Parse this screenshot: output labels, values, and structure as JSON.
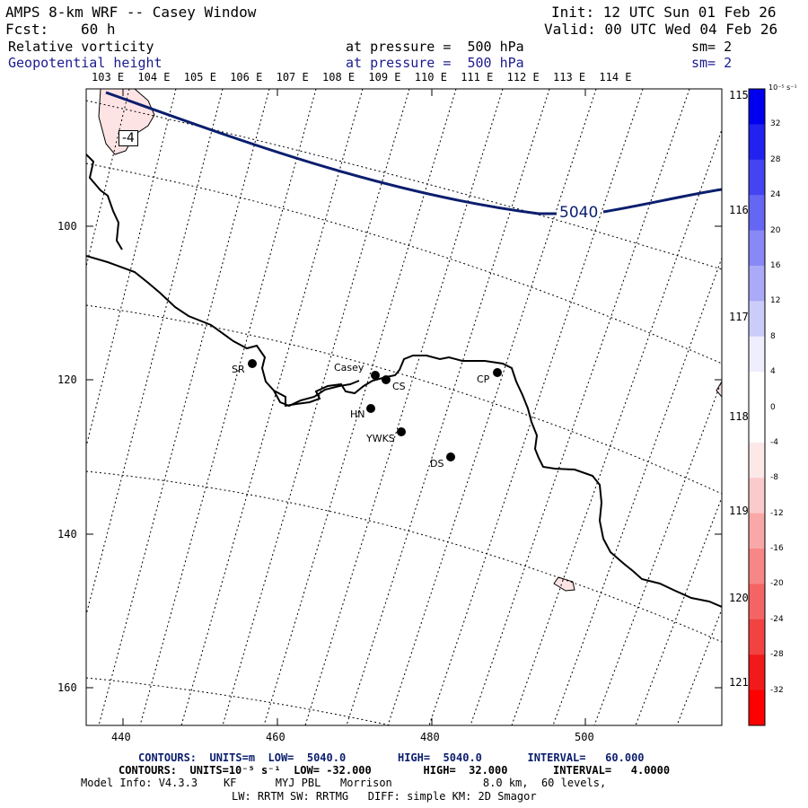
{
  "header": {
    "title": "AMPS 8-km WRF -- Casey Window",
    "init": "Init: 12 UTC Sun 01 Feb 26",
    "fcst_label": "Fcst:",
    "fcst_value": "60 h",
    "valid": "Valid: 00 UTC Wed 04 Feb 26"
  },
  "fields": [
    {
      "name": "Relative vorticity",
      "level": "at pressure =  500 hPa",
      "smooth": "sm= 2",
      "color": "#000000"
    },
    {
      "name": "Geopotential height",
      "level": "at pressure =  500 hPa",
      "smooth": "sm= 2",
      "color": "#1b1b8f"
    }
  ],
  "longitude_labels": [
    "103 E",
    "104 E",
    "105 E",
    "106 E",
    "107 E",
    "108 E",
    "109 E",
    "110 E",
    "111 E",
    "112 E",
    "113 E",
    "114 E"
  ],
  "right_longitude_labels": [
    "115 E",
    "116 E",
    "117 E",
    "118 E",
    "119 E",
    "120 E",
    "121 E"
  ],
  "axes": {
    "x_ticks": [
      440,
      460,
      480,
      500
    ],
    "y_ticks": [
      100,
      120,
      140,
      160
    ]
  },
  "stations": [
    {
      "label": "SR"
    },
    {
      "label": "Casey"
    },
    {
      "label": "CS"
    },
    {
      "label": "CP"
    },
    {
      "label": "HN"
    },
    {
      "label": "YWKS"
    },
    {
      "label": "DS"
    }
  ],
  "contour_labels": {
    "height": "5040",
    "vorticity": "-4"
  },
  "colorbar": {
    "unit": "10⁻⁵ s⁻¹",
    "ticks": [
      "32",
      "28",
      "24",
      "20",
      "16",
      "12",
      "8",
      "4",
      "0",
      "-4",
      "-8",
      "-12",
      "-16",
      "-20",
      "-24",
      "-28",
      "-32"
    ],
    "colors": [
      "#0000ee",
      "#2222f0",
      "#4444f2",
      "#6666f4",
      "#8888f6",
      "#aaaaf8",
      "#ccccfa",
      "#eeeefe",
      "#ffffff",
      "#ffffff",
      "#fde8e8",
      "#fbcaca",
      "#f9a8a8",
      "#f78686",
      "#f56464",
      "#f34242",
      "#f11a1a",
      "#ff0000"
    ]
  },
  "footer": {
    "line1": "CONTOURS:  UNITS=m  LOW=  5040.0        HIGH=  5040.0       INTERVAL=   60.000",
    "line2": "CONTOURS:  UNITS=10⁻⁵ s⁻¹  LOW= -32.000        HIGH=  32.000       INTERVAL=   4.0000",
    "line3": "Model Info: V4.3.3    KF      MYJ PBL   Morrison              8.0 km,  60 levels,",
    "line4": "LW: RRTM SW: RRTMG   DIFF: simple KM: 2D Smagor"
  }
}
